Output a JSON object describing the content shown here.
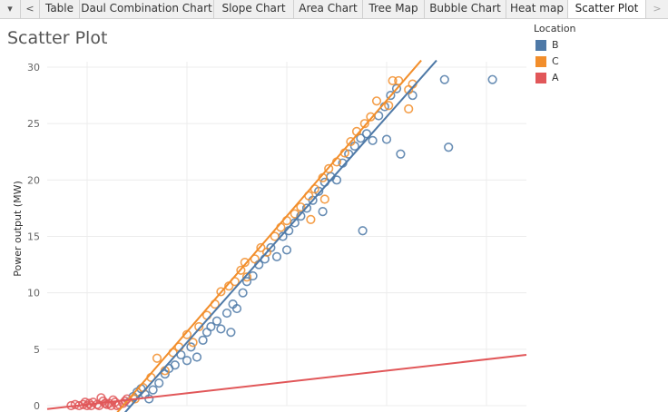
{
  "tabbar": {
    "dropdown_icon": "chevron-down-icon",
    "prev_icon": "chevron-left-icon",
    "next_icon": "chevron-right-icon",
    "tabs": [
      {
        "label": "Table"
      },
      {
        "label": "Daul Combination Chart"
      },
      {
        "label": "Slope Chart"
      },
      {
        "label": "Area Chart"
      },
      {
        "label": "Tree Map"
      },
      {
        "label": "Bubble Chart"
      },
      {
        "label": "Heat map"
      },
      {
        "label": "Scatter Plot",
        "active": true
      }
    ]
  },
  "page": {
    "title": "Scatter Plot"
  },
  "legend": {
    "title": "Location",
    "items": [
      {
        "label": "B",
        "color": "#4e79a7"
      },
      {
        "label": "C",
        "color": "#f28e2b"
      },
      {
        "label": "A",
        "color": "#e15759"
      }
    ]
  },
  "chart_data": {
    "type": "scatter",
    "title": "Scatter Plot",
    "xlabel": "",
    "ylabel": "Power output (MW)",
    "ylim": [
      0,
      30
    ],
    "yticks": [
      0,
      5,
      10,
      15,
      20,
      25,
      30
    ],
    "xlim": [
      0,
      24
    ],
    "grid": true,
    "legend_position": "top-right",
    "marker": "hollow-circle",
    "series": [
      {
        "name": "B",
        "color": "#4e79a7",
        "trend": {
          "slope": 2.0,
          "intercept": -8.4
        },
        "points": [
          [
            4.1,
            0.3
          ],
          [
            4.3,
            0.8
          ],
          [
            4.5,
            1.2
          ],
          [
            4.7,
            1.5
          ],
          [
            4.9,
            1.0
          ],
          [
            5.1,
            0.6
          ],
          [
            5.3,
            1.4
          ],
          [
            5.6,
            2.0
          ],
          [
            5.9,
            2.8
          ],
          [
            6.1,
            3.3
          ],
          [
            6.4,
            3.6
          ],
          [
            6.7,
            4.5
          ],
          [
            7.0,
            4.0
          ],
          [
            7.2,
            5.2
          ],
          [
            7.5,
            4.3
          ],
          [
            7.8,
            5.8
          ],
          [
            8.0,
            6.5
          ],
          [
            8.2,
            7.0
          ],
          [
            8.5,
            7.5
          ],
          [
            8.7,
            6.8
          ],
          [
            9.0,
            8.2
          ],
          [
            9.3,
            9.0
          ],
          [
            9.5,
            8.6
          ],
          [
            9.8,
            10.0
          ],
          [
            10.0,
            11.0
          ],
          [
            10.3,
            11.5
          ],
          [
            10.6,
            12.5
          ],
          [
            10.9,
            13.0
          ],
          [
            11.2,
            14.0
          ],
          [
            11.5,
            13.2
          ],
          [
            11.8,
            15.0
          ],
          [
            12.1,
            15.5
          ],
          [
            12.4,
            16.2
          ],
          [
            12.7,
            16.8
          ],
          [
            13.0,
            17.5
          ],
          [
            13.3,
            18.2
          ],
          [
            13.6,
            19.0
          ],
          [
            13.9,
            19.8
          ],
          [
            14.2,
            20.3
          ],
          [
            14.5,
            20.0
          ],
          [
            14.8,
            21.5
          ],
          [
            15.1,
            22.3
          ],
          [
            15.4,
            23.0
          ],
          [
            15.7,
            23.7
          ],
          [
            16.0,
            24.1
          ],
          [
            16.3,
            23.5
          ],
          [
            16.6,
            25.7
          ],
          [
            16.9,
            26.5
          ],
          [
            17.2,
            27.5
          ],
          [
            17.5,
            28.1
          ],
          [
            15.8,
            15.5
          ],
          [
            17.0,
            23.6
          ],
          [
            17.7,
            22.3
          ],
          [
            18.3,
            27.5
          ],
          [
            19.9,
            28.9
          ],
          [
            20.1,
            22.9
          ],
          [
            22.3,
            28.9
          ],
          [
            9.2,
            6.5
          ],
          [
            12.0,
            13.8
          ],
          [
            13.8,
            17.2
          ]
        ]
      },
      {
        "name": "C",
        "color": "#f28e2b",
        "trend": {
          "slope": 2.05,
          "intercept": -7.8
        },
        "points": [
          [
            4.4,
            0.6
          ],
          [
            4.8,
            1.6
          ],
          [
            5.2,
            2.5
          ],
          [
            5.5,
            4.2
          ],
          [
            5.9,
            3.1
          ],
          [
            6.3,
            4.7
          ],
          [
            6.6,
            5.2
          ],
          [
            7.0,
            6.3
          ],
          [
            7.3,
            5.6
          ],
          [
            7.6,
            7.0
          ],
          [
            8.0,
            8.0
          ],
          [
            8.4,
            9.0
          ],
          [
            8.7,
            10.1
          ],
          [
            9.1,
            10.6
          ],
          [
            9.4,
            11.0
          ],
          [
            9.7,
            12.0
          ],
          [
            10.0,
            11.4
          ],
          [
            10.4,
            13.0
          ],
          [
            10.7,
            14.0
          ],
          [
            11.0,
            13.6
          ],
          [
            11.4,
            15.0
          ],
          [
            11.7,
            15.8
          ],
          [
            12.0,
            16.4
          ],
          [
            12.4,
            17.0
          ],
          [
            12.7,
            17.6
          ],
          [
            13.1,
            18.6
          ],
          [
            13.4,
            19.2
          ],
          [
            13.8,
            20.2
          ],
          [
            14.1,
            21.0
          ],
          [
            14.5,
            21.6
          ],
          [
            14.9,
            22.4
          ],
          [
            15.2,
            23.4
          ],
          [
            15.5,
            24.3
          ],
          [
            15.9,
            25.0
          ],
          [
            16.2,
            25.6
          ],
          [
            16.5,
            27.0
          ],
          [
            17.1,
            26.6
          ],
          [
            17.3,
            28.8
          ],
          [
            17.6,
            28.8
          ],
          [
            18.1,
            28.0
          ],
          [
            18.3,
            28.5
          ],
          [
            18.1,
            26.3
          ],
          [
            13.2,
            16.5
          ],
          [
            13.9,
            18.3
          ],
          [
            9.9,
            12.7
          ]
        ]
      },
      {
        "name": "A",
        "color": "#e15759",
        "trend": {
          "slope": 0.2,
          "intercept": -0.3
        },
        "points": [
          [
            1.2,
            0.0
          ],
          [
            1.4,
            0.1
          ],
          [
            1.6,
            0.0
          ],
          [
            1.8,
            0.1
          ],
          [
            2.0,
            0.0
          ],
          [
            2.1,
            0.2
          ],
          [
            2.3,
            0.3
          ],
          [
            2.5,
            0.1
          ],
          [
            2.6,
            0.0
          ],
          [
            2.8,
            0.4
          ],
          [
            3.0,
            0.1
          ],
          [
            3.1,
            0.2
          ],
          [
            3.3,
            0.5
          ],
          [
            3.4,
            0.3
          ],
          [
            3.6,
            0.1
          ],
          [
            3.8,
            0.2
          ],
          [
            3.9,
            0.4
          ],
          [
            4.0,
            0.6
          ],
          [
            2.2,
            0.0
          ],
          [
            2.9,
            0.2
          ],
          [
            3.5,
            0.0
          ],
          [
            1.9,
            0.3
          ],
          [
            2.7,
            0.7
          ],
          [
            3.2,
            0.0
          ]
        ]
      }
    ]
  }
}
